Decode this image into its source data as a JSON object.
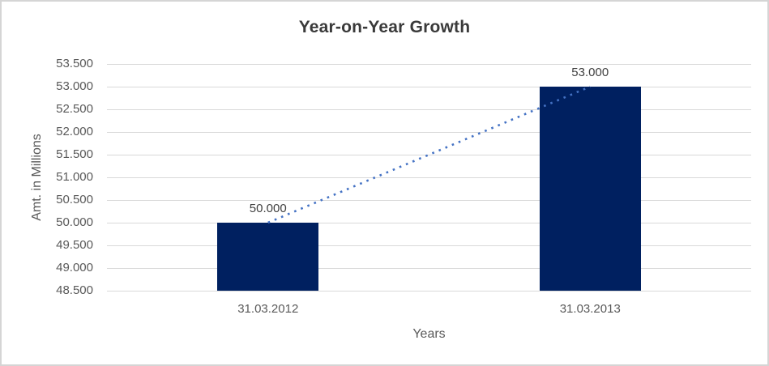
{
  "chart_data": {
    "type": "bar",
    "title": "Year-on-Year Growth",
    "xlabel": "Years",
    "ylabel": "Amt. in Millions",
    "categories": [
      "31.03.2012",
      "31.03.2013"
    ],
    "values": [
      50000,
      53000
    ],
    "data_labels": [
      "50.000",
      "53.000"
    ],
    "ylim": [
      48500,
      53500
    ],
    "ytick_interval": 500,
    "ytick_labels": [
      "48.500",
      "49.000",
      "49.500",
      "50.000",
      "50.500",
      "51.000",
      "51.500",
      "52.000",
      "52.500",
      "53.000",
      "53.500"
    ],
    "grid": true,
    "legend_position": "none",
    "trendline": {
      "type": "linear",
      "style": "dotted",
      "from_value": 50000,
      "to_value": 53000
    },
    "colors": {
      "bar": "#002060",
      "trendline": "#4472C4",
      "gridline": "#D9D9D9",
      "title_text": "#3A3A3A",
      "axis_text": "#595959",
      "label_text": "#404040",
      "frame_border": "#D5D5D5",
      "background": "#FFFFFF"
    }
  }
}
